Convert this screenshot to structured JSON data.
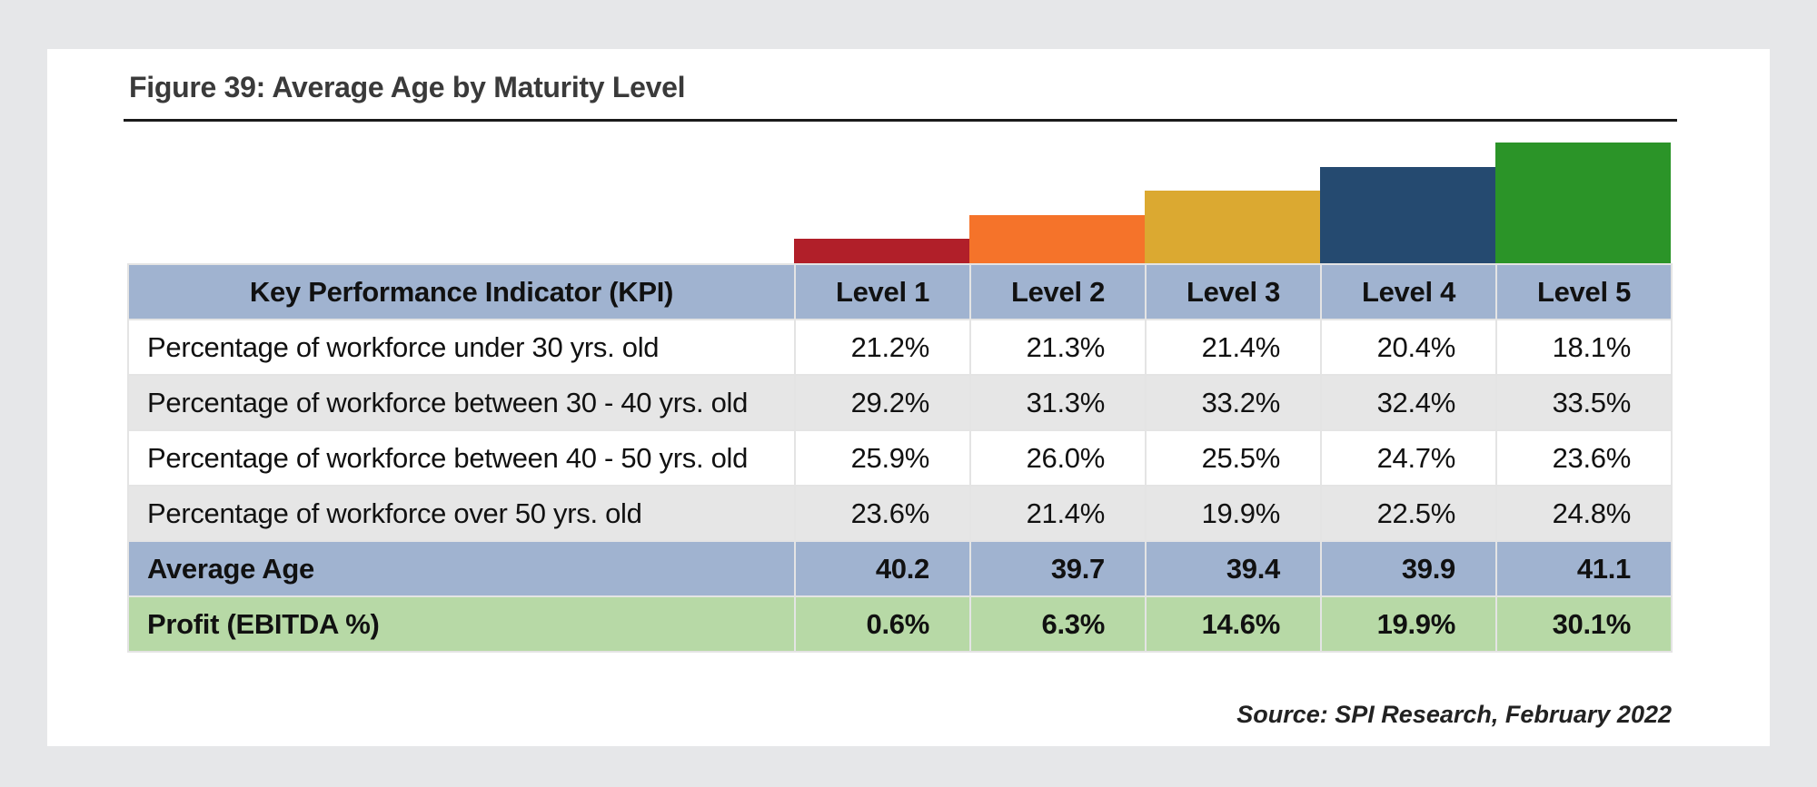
{
  "figure": {
    "title": "Figure 39:  Average Age by Maturity Level",
    "source": "Source: SPI Research, February 2022"
  },
  "chart_data": {
    "type": "table",
    "title": "Figure 39:  Average Age by Maturity Level",
    "columns": [
      "Key Performance Indicator (KPI)",
      "Level 1",
      "Level 2",
      "Level 3",
      "Level 4",
      "Level 5"
    ],
    "rows": [
      {
        "label": "Percentage of workforce under 30 yrs. old",
        "values": [
          "21.2%",
          "21.3%",
          "21.4%",
          "20.4%",
          "18.1%"
        ]
      },
      {
        "label": "Percentage of workforce between 30 - 40 yrs. old",
        "values": [
          "29.2%",
          "31.3%",
          "33.2%",
          "32.4%",
          "33.5%"
        ]
      },
      {
        "label": "Percentage of workforce between 40 - 50 yrs. old",
        "values": [
          "25.9%",
          "26.0%",
          "25.5%",
          "24.7%",
          "23.6%"
        ]
      },
      {
        "label": "Percentage of workforce over 50 yrs. old",
        "values": [
          "23.6%",
          "21.4%",
          "19.9%",
          "22.5%",
          "24.8%"
        ]
      },
      {
        "label": "Average Age",
        "values": [
          "40.2",
          "39.7",
          "39.4",
          "39.9",
          "41.1"
        ]
      },
      {
        "label": "Profit (EBITDA %)",
        "values": [
          "0.6%",
          "6.3%",
          "14.6%",
          "19.9%",
          "30.1%"
        ]
      }
    ],
    "level_steps": {
      "levels": [
        1,
        2,
        3,
        4,
        5
      ],
      "colors": [
        "#b11f29",
        "#f5732a",
        "#dba931",
        "#254a70",
        "#2b9428"
      ]
    }
  }
}
